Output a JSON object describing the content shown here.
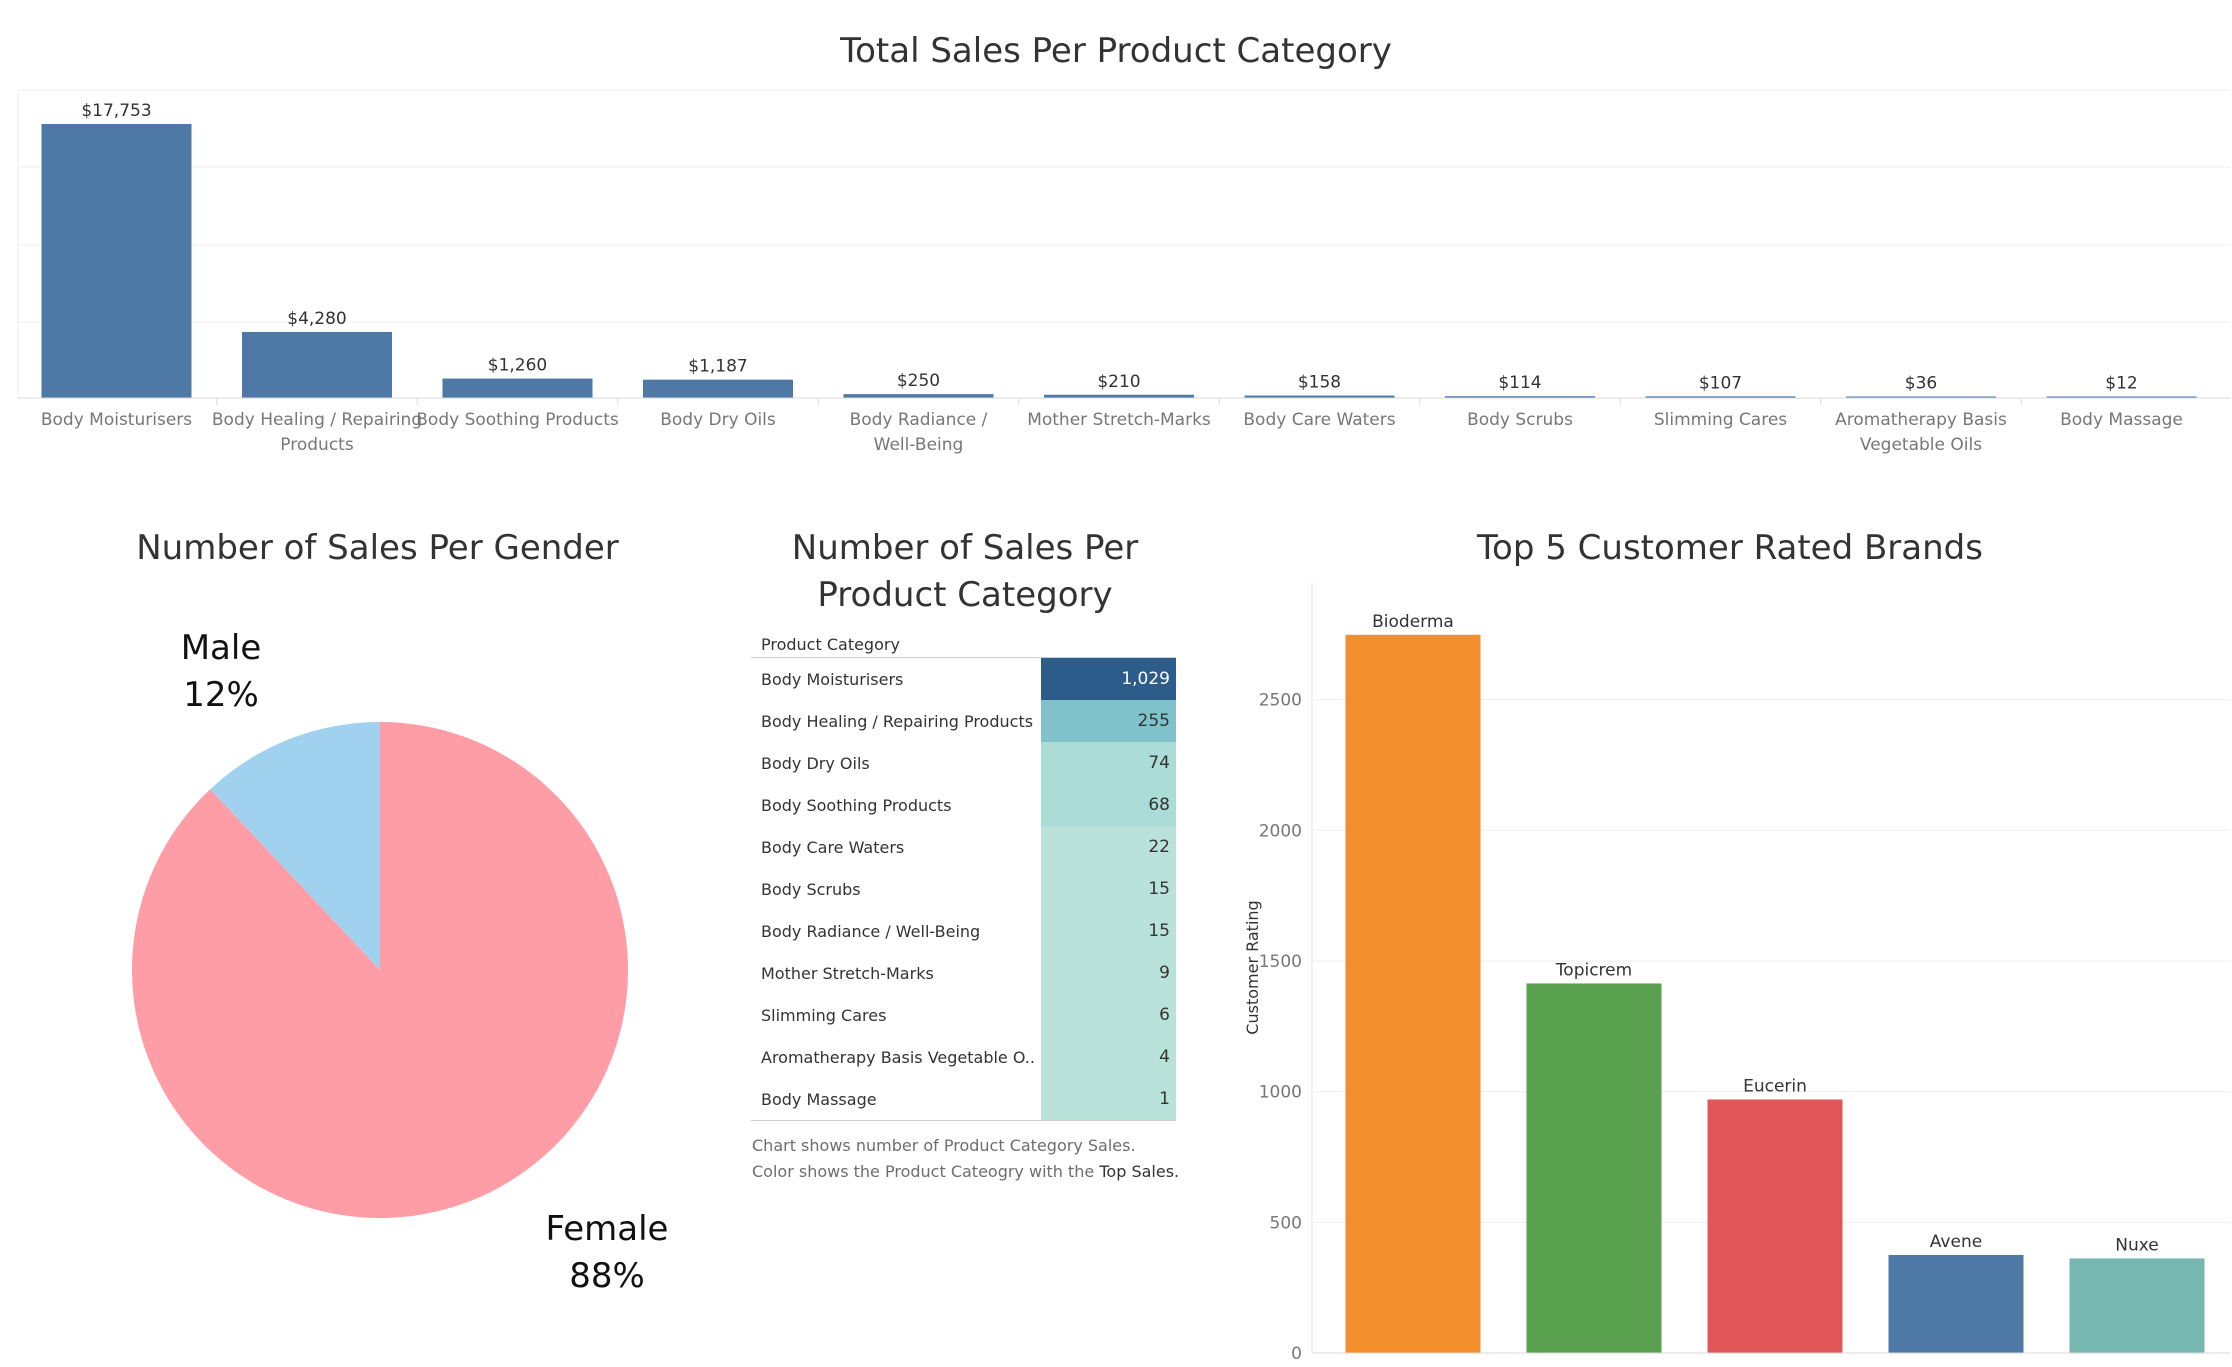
{
  "sales_chart": {
    "title": "Total Sales Per Product Category",
    "chart_data": {
      "type": "bar",
      "title": "Total Sales Per Product Category",
      "categories": [
        "Body Moisturisers",
        "Body Healing / Repairing Products",
        "Body Soothing Products",
        "Body Dry Oils",
        "Body Radiance / Well-Being",
        "Mother Stretch-Marks",
        "Body Care Waters",
        "Body Scrubs",
        "Slimming Cares",
        "Aromatherapy Basis Vegetable Oils",
        "Body Massage"
      ],
      "category_lines": [
        [
          "Body Moisturisers"
        ],
        [
          "Body Healing / Repairing",
          "Products"
        ],
        [
          "Body Soothing Products"
        ],
        [
          "Body Dry Oils"
        ],
        [
          "Body Radiance /",
          "Well-Being"
        ],
        [
          "Mother Stretch-Marks"
        ],
        [
          "Body Care Waters"
        ],
        [
          "Body Scrubs"
        ],
        [
          "Slimming Cares"
        ],
        [
          "Aromatherapy Basis",
          "Vegetable Oils"
        ],
        [
          "Body Massage"
        ]
      ],
      "values": [
        17753,
        4280,
        1260,
        1187,
        250,
        210,
        158,
        114,
        107,
        36,
        12
      ],
      "value_labels": [
        "$17,753",
        "$4,280",
        "$1,260",
        "$1,187",
        "$250",
        "$210",
        "$158",
        "$114",
        "$107",
        "$36",
        "$12"
      ],
      "ylim": [
        0,
        20000
      ],
      "grid": true,
      "color": "#4e79a7"
    }
  },
  "gender_chart": {
    "title": "Number of Sales Per Gender",
    "chart_data": {
      "type": "pie",
      "title": "Number of Sales Per Gender",
      "slices": [
        {
          "label": "Male",
          "pct_label": "12%",
          "value": 12,
          "color": "#a0d1ee"
        },
        {
          "label": "Female",
          "pct_label": "88%",
          "value": 88,
          "color": "#ff9da6"
        }
      ]
    }
  },
  "count_table": {
    "title_line1": "Number of Sales Per",
    "title_line2": "Product Category",
    "header": "Product Category",
    "caption_text": "Chart shows number of Product Category Sales. Color shows the Product Cateogry with the",
    "caption_bold": "Top Sales.",
    "chart_data": {
      "type": "table",
      "title": "Number of Sales Per Product Category",
      "rows": [
        {
          "label": "Body Moisturisers",
          "value": 1029,
          "display": "1,029"
        },
        {
          "label": "Body Healing / Repairing Products",
          "value": 255,
          "display": "255"
        },
        {
          "label": "Body Dry Oils",
          "value": 74,
          "display": "74"
        },
        {
          "label": "Body Soothing Products",
          "value": 68,
          "display": "68"
        },
        {
          "label": "Body Care Waters",
          "value": 22,
          "display": "22"
        },
        {
          "label": "Body Scrubs",
          "value": 15,
          "display": "15"
        },
        {
          "label": "Body Radiance / Well-Being",
          "value": 15,
          "display": "15"
        },
        {
          "label": "Mother Stretch-Marks",
          "value": 9,
          "display": "9"
        },
        {
          "label": "Slimming Cares",
          "value": 6,
          "display": "6"
        },
        {
          "label": "Aromatherapy Basis Vegetable O..",
          "value": 4,
          "display": "4"
        },
        {
          "label": "Body Massage",
          "value": 1,
          "display": "1"
        }
      ],
      "colors": {
        "top": "#2c5d8a",
        "second": "#80c2cc",
        "mid": "#abdcd6",
        "low": "#b9e3da"
      }
    }
  },
  "brands_chart": {
    "title": "Top 5 Customer Rated Brands",
    "chart_data": {
      "type": "bar",
      "title": "Top 5 Customer Rated Brands",
      "ylabel": "Customer Rating",
      "categories": [
        "Bioderma",
        "Topicrem",
        "Eucerin",
        "Avene",
        "Nuxe"
      ],
      "values": [
        2748,
        1414,
        970,
        375,
        362
      ],
      "colors": [
        "#f28e2b",
        "#59a14f",
        "#e15759",
        "#4e79a7",
        "#76b7b2"
      ],
      "yticks": [
        0,
        500,
        1000,
        1500,
        2000,
        2500
      ],
      "ylim": [
        0,
        2950
      ],
      "grid": true
    }
  }
}
